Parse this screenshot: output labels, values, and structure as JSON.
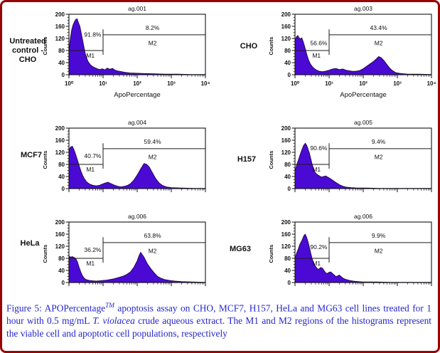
{
  "figure": {
    "border_color": "#990404",
    "caption_color": "#2424cd",
    "caption_segments": [
      {
        "t": "Figure 5: APOPercentage"
      },
      {
        "t": "TM",
        "sup": true
      },
      {
        "t": " apoptosis assay on CHO, MCF7, H157, HeLa and MG63 cell lines treated for 1 hour with 0.5 mg/mL "
      },
      {
        "t": "T. violacea",
        "ital": true
      },
      {
        "t": " crude aqueous extract. The M1 and M2 regions of the histograms represent the viable cell and apoptotic cell populations, respectively"
      }
    ]
  },
  "axis": {
    "y_label": "Counts",
    "x_label": "ApoPercentage",
    "x_label_color": "#2b2bf0",
    "y_ticks": [
      0,
      40,
      80,
      120,
      160,
      200
    ],
    "x_ticks": [
      "10⁰",
      "10¹",
      "10²",
      "10³",
      "10⁴"
    ],
    "y_max": 200,
    "x_decades": 4
  },
  "hist_fill": "#4a0ad4",
  "hist_stroke": "#1a0033",
  "chart_data": [
    {
      "type": "area",
      "id": "ag.001",
      "row_label": "Untreated control - CHO",
      "show_x_labels": true,
      "xlabel": "ApoPercentage",
      "ylabel": "Counts",
      "xscale": "log10 decades 0-4",
      "ylim": [
        0,
        200
      ],
      "m1": {
        "label": "M1",
        "pct": "91.8%",
        "line_y": 80,
        "pct_baseline": 126
      },
      "m2": {
        "label": "M2",
        "pct": "8.2%",
        "line_y": 132,
        "pct_baseline": 148
      },
      "divider_x": 1.0,
      "points": [
        [
          0,
          75
        ],
        [
          0.04,
          120
        ],
        [
          0.08,
          148
        ],
        [
          0.12,
          165
        ],
        [
          0.16,
          175
        ],
        [
          0.2,
          183
        ],
        [
          0.24,
          185
        ],
        [
          0.28,
          172
        ],
        [
          0.32,
          160
        ],
        [
          0.36,
          138
        ],
        [
          0.4,
          115
        ],
        [
          0.44,
          92
        ],
        [
          0.48,
          70
        ],
        [
          0.52,
          55
        ],
        [
          0.56,
          44
        ],
        [
          0.62,
          34
        ],
        [
          0.68,
          28
        ],
        [
          0.75,
          24
        ],
        [
          0.82,
          20
        ],
        [
          0.9,
          17
        ],
        [
          0.98,
          20
        ],
        [
          1.05,
          16
        ],
        [
          1.12,
          22
        ],
        [
          1.2,
          18
        ],
        [
          1.28,
          21
        ],
        [
          1.35,
          15
        ],
        [
          1.45,
          12
        ],
        [
          1.55,
          10
        ],
        [
          1.65,
          8
        ],
        [
          1.8,
          6
        ],
        [
          2.0,
          5
        ],
        [
          2.2,
          4
        ],
        [
          2.5,
          3
        ],
        [
          2.8,
          2
        ],
        [
          3.2,
          2
        ],
        [
          3.6,
          1
        ],
        [
          4,
          1
        ]
      ]
    },
    {
      "type": "area",
      "id": "ag.003",
      "row_label": "CHO",
      "show_x_labels": true,
      "xlabel": "ApoPercentage",
      "ylabel": "Counts",
      "xscale": "log10 decades 0-4",
      "ylim": [
        0,
        200
      ],
      "m1": {
        "label": "M1",
        "pct": "56.6%",
        "line_y": 80,
        "pct_baseline": 98
      },
      "m2": {
        "label": "M2",
        "pct": "43.4%",
        "line_y": 132,
        "pct_baseline": 148
      },
      "divider_x": 1.0,
      "points": [
        [
          0,
          112
        ],
        [
          0.04,
          125
        ],
        [
          0.08,
          130
        ],
        [
          0.12,
          122
        ],
        [
          0.16,
          118
        ],
        [
          0.2,
          122
        ],
        [
          0.24,
          110
        ],
        [
          0.28,
          95
        ],
        [
          0.32,
          78
        ],
        [
          0.36,
          62
        ],
        [
          0.4,
          48
        ],
        [
          0.45,
          36
        ],
        [
          0.5,
          28
        ],
        [
          0.55,
          22
        ],
        [
          0.62,
          16
        ],
        [
          0.7,
          12
        ],
        [
          0.8,
          10
        ],
        [
          0.9,
          12
        ],
        [
          1.0,
          15
        ],
        [
          1.1,
          19
        ],
        [
          1.2,
          21
        ],
        [
          1.3,
          17
        ],
        [
          1.4,
          19
        ],
        [
          1.5,
          15
        ],
        [
          1.6,
          13
        ],
        [
          1.7,
          11
        ],
        [
          1.8,
          12
        ],
        [
          1.9,
          14
        ],
        [
          2.0,
          20
        ],
        [
          2.1,
          28
        ],
        [
          2.2,
          36
        ],
        [
          2.3,
          44
        ],
        [
          2.38,
          52
        ],
        [
          2.45,
          60
        ],
        [
          2.52,
          57
        ],
        [
          2.6,
          48
        ],
        [
          2.68,
          36
        ],
        [
          2.76,
          24
        ],
        [
          2.85,
          14
        ],
        [
          2.95,
          7
        ],
        [
          3.1,
          4
        ],
        [
          3.3,
          2
        ],
        [
          3.6,
          2
        ],
        [
          4,
          1
        ]
      ]
    },
    {
      "type": "area",
      "id": "ag.004",
      "row_label": "MCF7",
      "show_x_labels": false,
      "xlabel": "",
      "ylabel": "Counts",
      "xscale": "log10 decades 0-4",
      "ylim": [
        0,
        200
      ],
      "m1": {
        "label": "M1",
        "pct": "40.7%",
        "line_y": 80,
        "pct_baseline": 101
      },
      "m2": {
        "label": "M2",
        "pct": "59.4%",
        "line_y": 132,
        "pct_baseline": 148
      },
      "divider_x": 1.0,
      "points": [
        [
          0,
          128
        ],
        [
          0.05,
          138
        ],
        [
          0.1,
          140
        ],
        [
          0.15,
          128
        ],
        [
          0.2,
          112
        ],
        [
          0.25,
          94
        ],
        [
          0.3,
          76
        ],
        [
          0.35,
          58
        ],
        [
          0.4,
          44
        ],
        [
          0.45,
          33
        ],
        [
          0.5,
          25
        ],
        [
          0.55,
          19
        ],
        [
          0.62,
          14
        ],
        [
          0.7,
          11
        ],
        [
          0.8,
          9
        ],
        [
          0.9,
          11
        ],
        [
          1.0,
          16
        ],
        [
          1.08,
          19
        ],
        [
          1.15,
          21
        ],
        [
          1.22,
          17
        ],
        [
          1.3,
          13
        ],
        [
          1.4,
          9
        ],
        [
          1.5,
          6
        ],
        [
          1.6,
          7
        ],
        [
          1.7,
          10
        ],
        [
          1.8,
          16
        ],
        [
          1.9,
          28
        ],
        [
          2.0,
          45
        ],
        [
          2.1,
          65
        ],
        [
          2.2,
          83
        ],
        [
          2.28,
          80
        ],
        [
          2.35,
          72
        ],
        [
          2.45,
          52
        ],
        [
          2.55,
          32
        ],
        [
          2.65,
          18
        ],
        [
          2.75,
          10
        ],
        [
          2.85,
          6
        ],
        [
          3.0,
          3
        ],
        [
          3.3,
          2
        ],
        [
          3.7,
          1
        ],
        [
          4,
          1
        ]
      ]
    },
    {
      "type": "area",
      "id": "ag.005",
      "row_label": "H157",
      "show_x_labels": false,
      "xlabel": "",
      "ylabel": "Counts",
      "xscale": "log10 decades 0-4",
      "ylim": [
        0,
        200
      ],
      "m1": {
        "label": "M1",
        "pct": "90.6%",
        "line_y": 80,
        "pct_baseline": 127
      },
      "m2": {
        "label": "M2",
        "pct": "9.4%",
        "line_y": 132,
        "pct_baseline": 148
      },
      "divider_x": 1.0,
      "points": [
        [
          0,
          58
        ],
        [
          0.05,
          78
        ],
        [
          0.1,
          95
        ],
        [
          0.15,
          112
        ],
        [
          0.2,
          128
        ],
        [
          0.25,
          142
        ],
        [
          0.3,
          150
        ],
        [
          0.34,
          144
        ],
        [
          0.38,
          132
        ],
        [
          0.42,
          118
        ],
        [
          0.46,
          100
        ],
        [
          0.5,
          82
        ],
        [
          0.55,
          64
        ],
        [
          0.6,
          52
        ],
        [
          0.66,
          46
        ],
        [
          0.72,
          42
        ],
        [
          0.78,
          38
        ],
        [
          0.84,
          40
        ],
        [
          0.9,
          42
        ],
        [
          0.96,
          38
        ],
        [
          1.02,
          34
        ],
        [
          1.1,
          28
        ],
        [
          1.2,
          20
        ],
        [
          1.3,
          13
        ],
        [
          1.4,
          8
        ],
        [
          1.5,
          5
        ],
        [
          1.65,
          3
        ],
        [
          1.8,
          2
        ],
        [
          2.1,
          2
        ],
        [
          2.5,
          1
        ],
        [
          3.0,
          1
        ],
        [
          3.5,
          1
        ],
        [
          4,
          1
        ]
      ]
    },
    {
      "type": "area",
      "id": "ag.006",
      "row_label": "HeLa",
      "show_x_labels": false,
      "xlabel": "",
      "ylabel": "Counts",
      "xscale": "log10 decades 0-4",
      "ylim": [
        0,
        200
      ],
      "m1": {
        "label": "M1",
        "pct": "36.2%",
        "line_y": 80,
        "pct_baseline": 101
      },
      "m2": {
        "label": "M2",
        "pct": "63.8%",
        "line_y": 132,
        "pct_baseline": 148
      },
      "divider_x": 1.0,
      "points": [
        [
          0,
          88
        ],
        [
          0.05,
          84
        ],
        [
          0.1,
          86
        ],
        [
          0.15,
          83
        ],
        [
          0.2,
          80
        ],
        [
          0.25,
          68
        ],
        [
          0.3,
          50
        ],
        [
          0.35,
          34
        ],
        [
          0.4,
          22
        ],
        [
          0.45,
          14
        ],
        [
          0.5,
          10
        ],
        [
          0.6,
          7
        ],
        [
          0.7,
          6
        ],
        [
          0.8,
          5
        ],
        [
          0.9,
          6
        ],
        [
          1.0,
          7
        ],
        [
          1.1,
          8
        ],
        [
          1.2,
          10
        ],
        [
          1.3,
          12
        ],
        [
          1.4,
          15
        ],
        [
          1.5,
          18
        ],
        [
          1.6,
          22
        ],
        [
          1.7,
          27
        ],
        [
          1.8,
          35
        ],
        [
          1.9,
          50
        ],
        [
          2.0,
          72
        ],
        [
          2.05,
          88
        ],
        [
          2.1,
          100
        ],
        [
          2.15,
          92
        ],
        [
          2.2,
          84
        ],
        [
          2.3,
          62
        ],
        [
          2.4,
          46
        ],
        [
          2.5,
          32
        ],
        [
          2.6,
          20
        ],
        [
          2.7,
          14
        ],
        [
          2.8,
          10
        ],
        [
          2.95,
          7
        ],
        [
          3.1,
          5
        ],
        [
          3.3,
          3
        ],
        [
          3.6,
          2
        ],
        [
          4,
          1
        ]
      ]
    },
    {
      "type": "area",
      "id": "ag.006",
      "row_label": "MG63",
      "show_x_labels": false,
      "xlabel": "",
      "ylabel": "Counts",
      "xscale": "log10 decades 0-4",
      "ylim": [
        0,
        200
      ],
      "m1": {
        "label": "M1",
        "pct": "90.2%",
        "line_y": 80,
        "pct_baseline": 111
      },
      "m2": {
        "label": "M2",
        "pct": "9.9%",
        "line_y": 132,
        "pct_baseline": 148
      },
      "divider_x": 1.0,
      "points": [
        [
          0,
          80
        ],
        [
          0.05,
          98
        ],
        [
          0.1,
          112
        ],
        [
          0.14,
          126
        ],
        [
          0.18,
          134
        ],
        [
          0.22,
          144
        ],
        [
          0.26,
          155
        ],
        [
          0.3,
          160
        ],
        [
          0.34,
          150
        ],
        [
          0.38,
          136
        ],
        [
          0.42,
          118
        ],
        [
          0.46,
          98
        ],
        [
          0.5,
          80
        ],
        [
          0.55,
          64
        ],
        [
          0.6,
          54
        ],
        [
          0.65,
          46
        ],
        [
          0.7,
          44
        ],
        [
          0.75,
          50
        ],
        [
          0.8,
          48
        ],
        [
          0.85,
          40
        ],
        [
          0.9,
          32
        ],
        [
          0.95,
          30
        ],
        [
          1.0,
          34
        ],
        [
          1.05,
          35
        ],
        [
          1.1,
          30
        ],
        [
          1.15,
          25
        ],
        [
          1.2,
          20
        ],
        [
          1.25,
          22
        ],
        [
          1.3,
          25
        ],
        [
          1.35,
          20
        ],
        [
          1.4,
          15
        ],
        [
          1.45,
          12
        ],
        [
          1.5,
          10
        ],
        [
          1.6,
          7
        ],
        [
          1.7,
          5
        ],
        [
          1.85,
          3
        ],
        [
          2.0,
          2
        ],
        [
          2.4,
          2
        ],
        [
          2.8,
          1
        ],
        [
          3.3,
          1
        ],
        [
          4,
          1
        ]
      ]
    }
  ]
}
